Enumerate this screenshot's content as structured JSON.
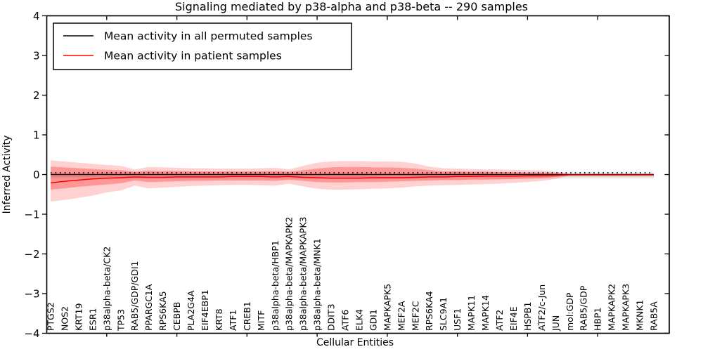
{
  "figure": {
    "background": "#ffffff"
  },
  "chart_data": {
    "type": "line",
    "title": "Signaling mediated by p38-alpha and p38-beta -- 290 samples",
    "xlabel": "Cellular Entities",
    "ylabel": "Inferred Activity",
    "ylim": [
      -4,
      4
    ],
    "yticks": [
      4,
      3,
      2,
      1,
      0,
      -1,
      -2,
      -3,
      -4
    ],
    "ytick_labels": [
      "4",
      "3",
      "2",
      "1",
      "0",
      "−1",
      "−2",
      "−3",
      "−4"
    ],
    "x_major_tick_every": 5,
    "grid": false,
    "legend": {
      "position": "upper left",
      "entries": [
        {
          "label": "Mean activity in all permuted samples",
          "color": "#000000"
        },
        {
          "label": "Mean activity in patient samples",
          "color": "#ff0000"
        }
      ]
    },
    "categories": [
      "PTGS2",
      "NOS2",
      "KRT19",
      "ESR1",
      "p38alpha-beta/CK2",
      "TP53",
      "RAB5/GDP/GDI1",
      "PPARGC1A",
      "RPS6KA5",
      "CEBPB",
      "PLA2G4A",
      "EIF4EBP1",
      "KRT8",
      "ATF1",
      "CREB1",
      "MITF",
      "p38alpha-beta/HBP1",
      "p38alpha-beta/MAPKAPK2",
      "p38alpha-beta/MAPKAPK3",
      "p38alpha-beta/MNK1",
      "DDIT3",
      "ATF6",
      "ELK4",
      "GDI1",
      "MAPKAPK5",
      "MEF2A",
      "MEF2C",
      "RPS6KA4",
      "SLC9A1",
      "USF1",
      "MAPK11",
      "MAPK14",
      "ATF2",
      "EIF4E",
      "HSPB1",
      "ATF2/c-Jun",
      "JUN",
      "mol:GDP",
      "RAB5/GDP",
      "HBP1",
      "MAPKAPK2",
      "MAPKAPK3",
      "MKNK1",
      "RAB5A"
    ],
    "series": [
      {
        "name": "Mean activity in all permuted samples",
        "color": "#000000",
        "style": "solid",
        "width": 1.3,
        "values": 0
      },
      {
        "name": "zero reference",
        "color": "#000000",
        "style": "dotted",
        "width": 1.8,
        "values": 0.045
      },
      {
        "name": "Mean activity in patient samples",
        "color": "#ff0000",
        "style": "solid",
        "width": 1.5,
        "values": [
          -0.21,
          -0.17,
          -0.14,
          -0.11,
          -0.09,
          -0.08,
          -0.06,
          -0.07,
          -0.07,
          -0.06,
          -0.06,
          -0.06,
          -0.06,
          -0.05,
          -0.05,
          -0.05,
          -0.06,
          -0.05,
          -0.07,
          -0.08,
          -0.09,
          -0.09,
          -0.09,
          -0.08,
          -0.08,
          -0.08,
          -0.07,
          -0.06,
          -0.06,
          -0.05,
          -0.05,
          -0.04,
          -0.04,
          -0.04,
          -0.03,
          -0.03,
          -0.02,
          -0.01,
          -0.01,
          -0.01,
          -0.01,
          -0.01,
          -0.01,
          -0.01
        ]
      }
    ],
    "bands": [
      {
        "name": "permuted-range",
        "fill": "rgba(0,0,0,0.08)",
        "from": 0,
        "to": 43,
        "top": 0.055,
        "bottom": -0.105
      },
      {
        "name": "permuted-std",
        "fill": "rgba(0,0,0,0.07)",
        "from": 0,
        "to": 43,
        "top": 0.035,
        "bottom": -0.065
      },
      {
        "name": "patient-range",
        "fill": "rgba(255,0,0,0.18)",
        "from": 0,
        "to": 37,
        "top": [
          0.36,
          0.33,
          0.3,
          0.27,
          0.24,
          0.22,
          0.13,
          0.19,
          0.18,
          0.17,
          0.16,
          0.16,
          0.15,
          0.15,
          0.15,
          0.16,
          0.17,
          0.13,
          0.22,
          0.3,
          0.33,
          0.34,
          0.34,
          0.33,
          0.33,
          0.32,
          0.28,
          0.2,
          0.16,
          0.15,
          0.14,
          0.13,
          0.13,
          0.12,
          0.11,
          0.1,
          0.07,
          0.01
        ],
        "bottom": [
          -0.68,
          -0.64,
          -0.59,
          -0.53,
          -0.45,
          -0.4,
          -0.28,
          -0.35,
          -0.33,
          -0.31,
          -0.29,
          -0.28,
          -0.27,
          -0.26,
          -0.26,
          -0.27,
          -0.28,
          -0.23,
          -0.3,
          -0.36,
          -0.38,
          -0.38,
          -0.37,
          -0.36,
          -0.35,
          -0.33,
          -0.3,
          -0.28,
          -0.27,
          -0.26,
          -0.25,
          -0.24,
          -0.23,
          -0.21,
          -0.19,
          -0.16,
          -0.11,
          -0.02
        ]
      },
      {
        "name": "patient-std",
        "fill": "rgba(255,0,0,0.28)",
        "from": 0,
        "to": 37,
        "top": [
          0.2,
          0.18,
          0.16,
          0.14,
          0.12,
          0.11,
          0.07,
          0.1,
          0.09,
          0.09,
          0.08,
          0.08,
          0.08,
          0.08,
          0.08,
          0.08,
          0.09,
          0.07,
          0.11,
          0.15,
          0.18,
          0.19,
          0.19,
          0.18,
          0.18,
          0.17,
          0.15,
          0.11,
          0.08,
          0.08,
          0.07,
          0.07,
          0.06,
          0.06,
          0.05,
          0.05,
          0.03,
          0.01
        ],
        "bottom": [
          -0.38,
          -0.35,
          -0.31,
          -0.28,
          -0.25,
          -0.22,
          -0.15,
          -0.19,
          -0.18,
          -0.17,
          -0.16,
          -0.16,
          -0.15,
          -0.15,
          -0.15,
          -0.15,
          -0.16,
          -0.13,
          -0.16,
          -0.19,
          -0.2,
          -0.2,
          -0.19,
          -0.19,
          -0.18,
          -0.17,
          -0.16,
          -0.15,
          -0.14,
          -0.14,
          -0.13,
          -0.13,
          -0.12,
          -0.11,
          -0.1,
          -0.09,
          -0.06,
          -0.01
        ]
      }
    ]
  }
}
